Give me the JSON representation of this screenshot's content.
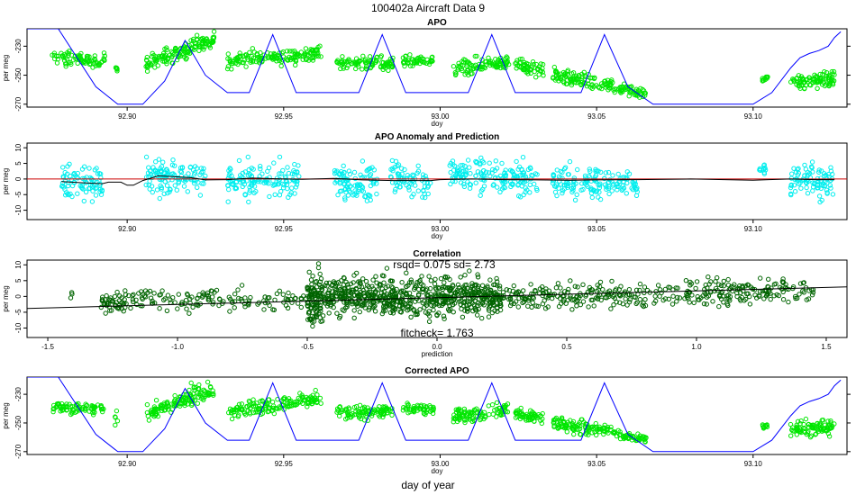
{
  "figure": {
    "title": "100402a   Aircraft Data 9",
    "xlabel": "day of year"
  },
  "colors": {
    "bright_green": "#00e600",
    "cyan": "#00eeee",
    "dark_green": "#006400",
    "blue": "#0000ff",
    "red": "#cc0000",
    "black": "#000000"
  },
  "chart_data": [
    {
      "id": "apo",
      "type": "scatter",
      "title": "APO",
      "xlabel": "doy",
      "ylabel": "per meg",
      "xlim": [
        92.868,
        93.13
      ],
      "ylim": [
        -272,
        -218
      ],
      "xticks": [
        92.9,
        92.95,
        93.0,
        93.05,
        93.1
      ],
      "xtick_labels": [
        "92.90",
        "92.95",
        "93.00",
        "93.05",
        "93.10"
      ],
      "yticks": [
        -230,
        -250,
        -270
      ],
      "ytick_labels": [
        "-230",
        "-250",
        "-270"
      ],
      "series": [
        {
          "name": "APO observed",
          "style": "points",
          "color": "#00e600",
          "segments": [
            {
              "x0": 92.876,
              "x1": 92.893,
              "center": [
                -238,
                -240
              ],
              "spread": 7,
              "n": 80
            },
            {
              "x0": 92.896,
              "x1": 92.897,
              "center": [
                -245,
                -245
              ],
              "spread": 6,
              "n": 5
            },
            {
              "x0": 92.906,
              "x1": 92.92,
              "center": [
                -242,
                -232
              ],
              "spread": 8,
              "n": 90
            },
            {
              "x0": 92.92,
              "x1": 92.928,
              "center": [
                -230,
                -226
              ],
              "spread": 9,
              "n": 55
            },
            {
              "x0": 92.932,
              "x1": 92.955,
              "center": [
                -240,
                -236
              ],
              "spread": 8,
              "n": 120
            },
            {
              "x0": 92.955,
              "x1": 92.962,
              "center": [
                -236,
                -234
              ],
              "spread": 7,
              "n": 40
            },
            {
              "x0": 92.967,
              "x1": 92.985,
              "center": [
                -242,
                -242
              ],
              "spread": 7,
              "n": 100
            },
            {
              "x0": 92.988,
              "x1": 92.998,
              "center": [
                -241,
                -240
              ],
              "spread": 6,
              "n": 50
            },
            {
              "x0": 93.004,
              "x1": 93.022,
              "center": [
                -246,
                -240
              ],
              "spread": 8,
              "n": 100
            },
            {
              "x0": 93.024,
              "x1": 93.033,
              "center": [
                -243,
                -247
              ],
              "spread": 7,
              "n": 55
            },
            {
              "x0": 93.036,
              "x1": 93.055,
              "center": [
                -250,
                -257
              ],
              "spread": 7,
              "n": 110
            },
            {
              "x0": 93.055,
              "x1": 93.066,
              "center": [
                -258,
                -263
              ],
              "spread": 5,
              "n": 55
            },
            {
              "x0": 93.103,
              "x1": 93.105,
              "center": [
                -252,
                -252
              ],
              "spread": 4,
              "n": 10
            },
            {
              "x0": 93.112,
              "x1": 93.126,
              "center": [
                -255,
                -252
              ],
              "spread": 9,
              "n": 90
            }
          ]
        },
        {
          "name": "APO model",
          "style": "line",
          "color": "#0000ff",
          "x": [
            92.868,
            92.878,
            92.89,
            92.897,
            92.905,
            92.912,
            92.9185,
            92.925,
            92.932,
            92.939,
            92.9465,
            92.954,
            92.961,
            92.968,
            92.974,
            92.9815,
            92.989,
            92.996,
            93.003,
            93.009,
            93.0165,
            93.024,
            93.031,
            93.038,
            93.045,
            93.0525,
            93.06,
            93.068,
            93.08,
            93.095,
            93.1,
            93.106,
            93.112,
            93.115,
            93.118,
            93.121,
            93.124,
            93.126,
            93.128
          ],
          "y": [
            -218,
            -218,
            -258,
            -270,
            -270,
            -254,
            -226,
            -250,
            -262,
            -262,
            -222,
            -262,
            -262,
            -262,
            -262,
            -222,
            -262,
            -262,
            -262,
            -262,
            -222,
            -262,
            -262,
            -262,
            -262,
            -222,
            -258,
            -270,
            -270,
            -270,
            -270,
            -262,
            -245,
            -238,
            -235,
            -233,
            -230,
            -224,
            -220
          ]
        }
      ]
    },
    {
      "id": "anomaly",
      "type": "scatter",
      "title": "APO Anomaly and Prediction",
      "xlabel": "doy",
      "ylabel": "per meg",
      "xlim": [
        92.868,
        93.13
      ],
      "ylim": [
        -13,
        11.5
      ],
      "xticks": [
        92.9,
        92.95,
        93.0,
        93.05,
        93.1
      ],
      "xtick_labels": [
        "92.90",
        "92.95",
        "93.00",
        "93.05",
        "93.10"
      ],
      "yticks": [
        10,
        5,
        0,
        -5,
        -10
      ],
      "ytick_labels": [
        "10",
        "5",
        "0",
        "-5",
        "-10"
      ],
      "series": [
        {
          "name": "APO anomaly",
          "style": "points",
          "color": "#00eeee",
          "segments": [
            {
              "x0": 92.879,
              "x1": 92.892,
              "center": [
                -1,
                -1
              ],
              "spread": 9,
              "n": 85
            },
            {
              "x0": 92.906,
              "x1": 92.925,
              "center": [
                1,
                0
              ],
              "spread": 8,
              "n": 115
            },
            {
              "x0": 92.932,
              "x1": 92.955,
              "center": [
                -1,
                0
              ],
              "spread": 8,
              "n": 135
            },
            {
              "x0": 92.966,
              "x1": 92.98,
              "center": [
                0,
                -1
              ],
              "spread": 8,
              "n": 95
            },
            {
              "x0": 92.984,
              "x1": 92.997,
              "center": [
                1,
                -2
              ],
              "spread": 8,
              "n": 75
            },
            {
              "x0": 93.003,
              "x1": 93.01,
              "center": [
                2,
                0
              ],
              "spread": 7,
              "n": 50
            },
            {
              "x0": 93.011,
              "x1": 93.021,
              "center": [
                2,
                0
              ],
              "spread": 8,
              "n": 60
            },
            {
              "x0": 93.022,
              "x1": 93.031,
              "center": [
                0,
                -1
              ],
              "spread": 8,
              "n": 60
            },
            {
              "x0": 93.036,
              "x1": 93.044,
              "center": [
                -1,
                -1
              ],
              "spread": 7,
              "n": 50
            },
            {
              "x0": 93.045,
              "x1": 93.055,
              "center": [
                0,
                -2
              ],
              "spread": 7,
              "n": 60
            },
            {
              "x0": 93.055,
              "x1": 93.063,
              "center": [
                -1,
                -2
              ],
              "spread": 6,
              "n": 40
            },
            {
              "x0": 93.102,
              "x1": 93.104,
              "center": [
                3,
                3
              ],
              "spread": 4,
              "n": 12
            },
            {
              "x0": 93.112,
              "x1": 93.126,
              "center": [
                0,
                -1
              ],
              "spread": 8,
              "n": 90
            }
          ]
        },
        {
          "name": "zero",
          "style": "line",
          "color": "#cc0000",
          "x": [
            92.868,
            93.13
          ],
          "y": [
            0,
            0
          ]
        },
        {
          "name": "prediction",
          "style": "line",
          "color": "#000000",
          "x": [
            92.879,
            92.886,
            92.892,
            92.894,
            92.898,
            92.9,
            92.902,
            92.905,
            92.91,
            92.92,
            92.925,
            92.932,
            92.94,
            92.95,
            92.956,
            92.966,
            92.975,
            92.985,
            92.997,
            93.0,
            93.01,
            93.02,
            93.031,
            93.04,
            93.05,
            93.063,
            93.08,
            93.1,
            93.105,
            93.112,
            93.12,
            93.126
          ],
          "y": [
            -0.8,
            -1.2,
            -1.5,
            -1.0,
            -1.0,
            -2.0,
            -2.0,
            -0.5,
            1.0,
            0.5,
            -0.3,
            -0.2,
            0.3,
            0.0,
            -0.1,
            0.2,
            -0.3,
            -0.5,
            -0.5,
            -0.2,
            0.0,
            -0.2,
            -0.3,
            -0.4,
            -0.3,
            -0.2,
            0.0,
            -0.4,
            -0.2,
            0.0,
            -0.2,
            -0.2
          ]
        }
      ]
    },
    {
      "id": "correlation",
      "type": "scatter",
      "title": "Correlation",
      "subtitle": "rsqd= 0.075 sd= 2.73",
      "annotation": "fitcheck= 1.763",
      "xlabel": "prediction",
      "ylabel": "per meg",
      "xlim": [
        -1.58,
        1.58
      ],
      "ylim": [
        -13,
        11.5
      ],
      "xticks": [
        -1.5,
        -1.0,
        -0.5,
        0.0,
        0.5,
        1.0,
        1.5
      ],
      "xtick_labels": [
        "-1.5",
        "-1.0",
        "-0.5",
        "0.0",
        "0.5",
        "1.0",
        "1.5"
      ],
      "yticks": [
        10,
        5,
        0,
        -5,
        -10
      ],
      "ytick_labels": [
        "10",
        "5",
        "0",
        "-5",
        "-10"
      ],
      "series": [
        {
          "name": "anomaly vs prediction",
          "style": "points",
          "color": "#006400",
          "segments": [
            {
              "x0": -1.42,
              "x1": -1.4,
              "center": [
                1,
                1
              ],
              "spread": 2,
              "n": 3
            },
            {
              "x0": -1.3,
              "x1": -1.2,
              "center": [
                -2,
                -2
              ],
              "spread": 5,
              "n": 45
            },
            {
              "x0": -1.2,
              "x1": -0.5,
              "center": [
                -1,
                -1
              ],
              "spread": 5,
              "n": 140
            },
            {
              "x0": -0.5,
              "x1": -0.44,
              "center": [
                -1,
                -1
              ],
              "spread": 12,
              "n": 110
            },
            {
              "x0": -0.44,
              "x1": 0.25,
              "center": [
                0,
                0
              ],
              "spread": 9,
              "n": 650
            },
            {
              "x0": 0.25,
              "x1": 0.9,
              "center": [
                0,
                0.5
              ],
              "spread": 6,
              "n": 200
            },
            {
              "x0": 0.9,
              "x1": 1.45,
              "center": [
                1,
                2
              ],
              "spread": 6,
              "n": 170
            }
          ]
        },
        {
          "name": "fit",
          "style": "line",
          "color": "#000000",
          "x": [
            -1.58,
            1.58
          ],
          "y": [
            -3.8,
            3.0
          ]
        }
      ]
    },
    {
      "id": "corrected",
      "type": "scatter",
      "title": "Corrected APO",
      "xlabel": "doy",
      "ylabel": "per meg",
      "xlim": [
        92.868,
        93.13
      ],
      "ylim": [
        -272,
        -218
      ],
      "xticks": [
        92.9,
        92.95,
        93.0,
        93.05,
        93.1
      ],
      "xtick_labels": [
        "92.90",
        "92.95",
        "93.00",
        "93.05",
        "93.10"
      ],
      "yticks": [
        -230,
        -250,
        -270
      ],
      "ytick_labels": [
        "-230",
        "-250",
        "-270"
      ],
      "series": [
        {
          "name": "corrected APO",
          "style": "points",
          "color": "#00e600",
          "segments": [
            {
              "x0": 92.876,
              "x1": 92.893,
              "center": [
                -239,
                -240
              ],
              "spread": 7,
              "n": 80
            },
            {
              "x0": 92.896,
              "x1": 92.897,
              "center": [
                -246,
                -246
              ],
              "spread": 6,
              "n": 5
            },
            {
              "x0": 92.906,
              "x1": 92.92,
              "center": [
                -243,
                -233
              ],
              "spread": 8,
              "n": 90
            },
            {
              "x0": 92.92,
              "x1": 92.928,
              "center": [
                -231,
                -227
              ],
              "spread": 9,
              "n": 55
            },
            {
              "x0": 92.932,
              "x1": 92.955,
              "center": [
                -241,
                -236
              ],
              "spread": 8,
              "n": 120
            },
            {
              "x0": 92.955,
              "x1": 92.962,
              "center": [
                -235,
                -234
              ],
              "spread": 7,
              "n": 40
            },
            {
              "x0": 92.967,
              "x1": 92.985,
              "center": [
                -243,
                -242
              ],
              "spread": 7,
              "n": 100
            },
            {
              "x0": 92.988,
              "x1": 92.998,
              "center": [
                -241,
                -240
              ],
              "spread": 6,
              "n": 50
            },
            {
              "x0": 93.004,
              "x1": 93.022,
              "center": [
                -246,
                -240
              ],
              "spread": 8,
              "n": 100
            },
            {
              "x0": 93.024,
              "x1": 93.033,
              "center": [
                -244,
                -247
              ],
              "spread": 7,
              "n": 55
            },
            {
              "x0": 93.036,
              "x1": 93.055,
              "center": [
                -250,
                -256
              ],
              "spread": 7,
              "n": 110
            },
            {
              "x0": 93.055,
              "x1": 93.066,
              "center": [
                -257,
                -262
              ],
              "spread": 5,
              "n": 55
            },
            {
              "x0": 93.103,
              "x1": 93.105,
              "center": [
                -252,
                -252
              ],
              "spread": 4,
              "n": 10
            },
            {
              "x0": 93.112,
              "x1": 93.126,
              "center": [
                -254,
                -252
              ],
              "spread": 9,
              "n": 90
            }
          ]
        },
        {
          "name": "APO model",
          "style": "line",
          "color": "#0000ff",
          "x": [
            92.868,
            92.878,
            92.89,
            92.897,
            92.905,
            92.912,
            92.9185,
            92.925,
            92.932,
            92.939,
            92.9465,
            92.954,
            92.961,
            92.968,
            92.974,
            92.9815,
            92.989,
            92.996,
            93.003,
            93.009,
            93.0165,
            93.024,
            93.031,
            93.038,
            93.045,
            93.0525,
            93.06,
            93.068,
            93.08,
            93.095,
            93.1,
            93.106,
            93.112,
            93.115,
            93.118,
            93.121,
            93.124,
            93.126,
            93.128
          ],
          "y": [
            -218,
            -218,
            -258,
            -270,
            -270,
            -254,
            -226,
            -250,
            -262,
            -262,
            -222,
            -262,
            -262,
            -262,
            -262,
            -222,
            -262,
            -262,
            -262,
            -262,
            -222,
            -262,
            -262,
            -262,
            -262,
            -222,
            -258,
            -270,
            -270,
            -270,
            -270,
            -262,
            -245,
            -238,
            -235,
            -233,
            -230,
            -224,
            -220
          ]
        }
      ]
    }
  ]
}
